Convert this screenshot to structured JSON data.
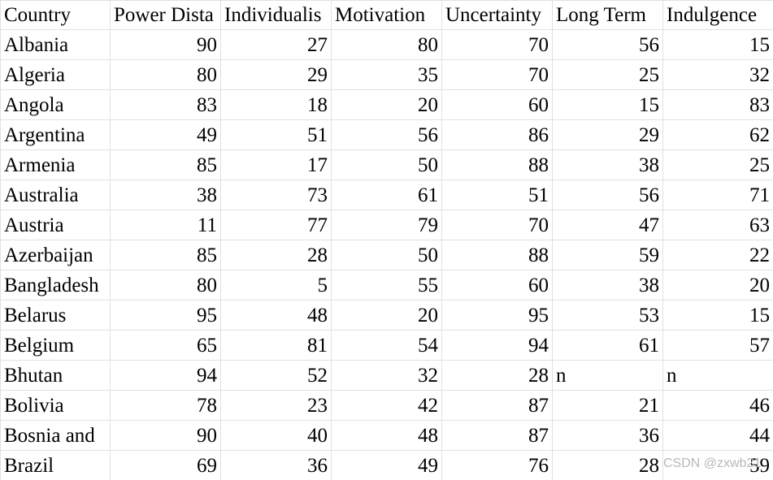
{
  "table": {
    "header": [
      "Country",
      "Power Dista",
      "Individualis",
      "Motivation",
      "Uncertainty",
      "Long Term",
      "Indulgence"
    ],
    "rows": [
      [
        "Albania",
        90,
        27,
        80,
        70,
        56,
        15
      ],
      [
        "Algeria",
        80,
        29,
        35,
        70,
        25,
        32
      ],
      [
        "Angola",
        83,
        18,
        20,
        60,
        15,
        83
      ],
      [
        "Argentina",
        49,
        51,
        56,
        86,
        29,
        62
      ],
      [
        "Armenia",
        85,
        17,
        50,
        88,
        38,
        25
      ],
      [
        "Australia",
        38,
        73,
        61,
        51,
        56,
        71
      ],
      [
        "Austria",
        11,
        77,
        79,
        70,
        47,
        63
      ],
      [
        "Azerbaijan",
        85,
        28,
        50,
        88,
        59,
        22
      ],
      [
        "Bangladesh",
        80,
        5,
        55,
        60,
        38,
        20
      ],
      [
        "Belarus",
        95,
        48,
        20,
        95,
        53,
        15
      ],
      [
        "Belgium",
        65,
        81,
        54,
        94,
        61,
        57
      ],
      [
        "Bhutan",
        94,
        52,
        32,
        28,
        "n",
        "n"
      ],
      [
        "Bolivia",
        78,
        23,
        42,
        87,
        21,
        46
      ],
      [
        "Bosnia and",
        90,
        40,
        48,
        87,
        36,
        44
      ],
      [
        "Brazil",
        69,
        36,
        49,
        76,
        28,
        59
      ]
    ]
  },
  "watermark": "CSDN @zxwb21"
}
